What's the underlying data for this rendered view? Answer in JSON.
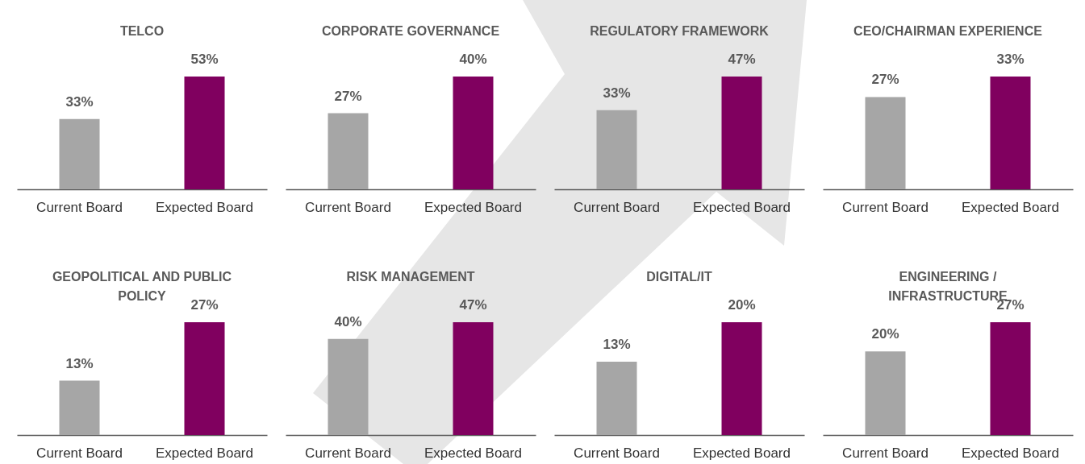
{
  "chart_data": [
    {
      "type": "bar",
      "title": "TELCO",
      "categories": [
        "Current Board",
        "Expected Board"
      ],
      "values": [
        33,
        53
      ],
      "value_labels": [
        "33%",
        "53%"
      ],
      "colors": [
        "#a6a6a6",
        "#80005f"
      ],
      "tick_labels": "x"
    },
    {
      "type": "bar",
      "title": "CORPORATE GOVERNANCE",
      "categories": [
        "Current Board",
        "Expected Board"
      ],
      "values": [
        27,
        40
      ],
      "value_labels": [
        "27%",
        "40%"
      ],
      "colors": [
        "#a6a6a6",
        "#80005f"
      ],
      "tick_labels": "x"
    },
    {
      "type": "bar",
      "title": "REGULATORY FRAMEWORK",
      "categories": [
        "Current Board",
        "Expected Board"
      ],
      "values": [
        33,
        47
      ],
      "value_labels": [
        "33%",
        "47%"
      ],
      "colors": [
        "#a6a6a6",
        "#80005f"
      ],
      "tick_labels": "x"
    },
    {
      "type": "bar",
      "title": "CEO/CHAIRMAN EXPERIENCE",
      "categories": [
        "Current Board",
        "Expected Board"
      ],
      "values": [
        27,
        33
      ],
      "value_labels": [
        "27%",
        "33%"
      ],
      "colors": [
        "#a6a6a6",
        "#80005f"
      ],
      "tick_labels": "x"
    },
    {
      "type": "bar",
      "title": "GEOPOLITICAL AND PUBLIC\nPOLICY",
      "categories": [
        "Current Board",
        "Expected Board"
      ],
      "values": [
        13,
        27
      ],
      "value_labels": [
        "13%",
        "27%"
      ],
      "colors": [
        "#a6a6a6",
        "#80005f"
      ],
      "tick_labels": "x"
    },
    {
      "type": "bar",
      "title": "RISK MANAGEMENT",
      "categories": [
        "Current Board",
        "Expected Board"
      ],
      "values": [
        40,
        47
      ],
      "value_labels": [
        "40%",
        "47%"
      ],
      "colors": [
        "#a6a6a6",
        "#80005f"
      ],
      "tick_labels": "x"
    },
    {
      "type": "bar",
      "title": "DIGITAL/IT",
      "categories": [
        "Current Board",
        "Expected Board"
      ],
      "values": [
        13,
        20
      ],
      "value_labels": [
        "13%",
        "20%"
      ],
      "colors": [
        "#a6a6a6",
        "#80005f"
      ],
      "tick_labels": "x"
    },
    {
      "type": "bar",
      "title": "ENGINEERING /\nINFRASTRUCTURE",
      "categories": [
        "Current Board",
        "Expected Board"
      ],
      "values": [
        20,
        27
      ],
      "value_labels": [
        "20%",
        "27%"
      ],
      "colors": [
        "#a6a6a6",
        "#80005f"
      ],
      "tick_labels": "x"
    }
  ]
}
